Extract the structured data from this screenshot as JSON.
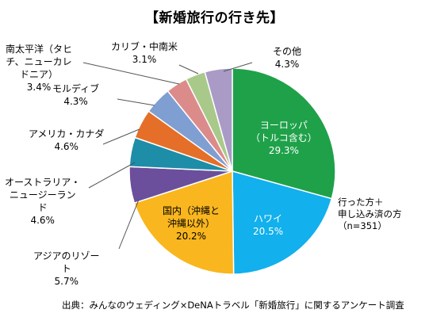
{
  "title": "【新婚旅行の行き先】",
  "chart_data": {
    "type": "pie",
    "start_angle_deg": 0,
    "direction": "clockwise",
    "slices": [
      {
        "key": "europe",
        "label_lines": [
          "ヨーロッパ",
          "（トルコ含む）"
        ],
        "value_text": "29.3%",
        "value": 29.3,
        "color": "#1fa14a",
        "label_color": "#ffffff"
      },
      {
        "key": "hawaii",
        "label_lines": [
          "ハワイ"
        ],
        "value_text": "20.5%",
        "value": 20.5,
        "color": "#12b0ec",
        "label_color": "#ffffff"
      },
      {
        "key": "domestic",
        "label_lines": [
          "国内（沖縄と",
          "沖縄以外）"
        ],
        "value_text": "20.2%",
        "value": 20.2,
        "color": "#f9b61e",
        "label_color": "#000000"
      },
      {
        "key": "asia",
        "label_lines": [
          "アジアのリゾー",
          "ト"
        ],
        "value_text": "5.7%",
        "value": 5.7,
        "color": "#6b4f9c",
        "label_color": "#000000"
      },
      {
        "key": "oceania",
        "label_lines": [
          "オーストラリア・",
          "ニュージーラン",
          "ド"
        ],
        "value_text": "4.6%",
        "value": 4.6,
        "color": "#1d8da8",
        "label_color": "#000000"
      },
      {
        "key": "americas",
        "label_lines": [
          "アメリカ・カナダ"
        ],
        "value_text": "4.6%",
        "value": 4.6,
        "color": "#e56f28",
        "label_color": "#000000"
      },
      {
        "key": "maldives",
        "label_lines": [
          "モルディブ"
        ],
        "value_text": "4.3%",
        "value": 4.3,
        "color": "#7f9fd2",
        "label_color": "#000000"
      },
      {
        "key": "pacific",
        "label_lines": [
          "南太平洋（タヒ",
          "チ、ニューカレ",
          "ドニア）"
        ],
        "value_text": "3.4%",
        "value": 3.4,
        "color": "#dc8b8b",
        "label_color": "#000000"
      },
      {
        "key": "caribbean",
        "label_lines": [
          "カリブ・中南米"
        ],
        "value_text": "3.1%",
        "value": 3.1,
        "color": "#a9c98a",
        "label_color": "#000000"
      },
      {
        "key": "other",
        "label_lines": [
          "その他"
        ],
        "value_text": "4.3%",
        "value": 4.3,
        "color": "#a99bc6",
        "label_color": "#000000"
      }
    ]
  },
  "note_lines": [
    "行った方＋",
    "申し込み済の方",
    "（n=351）"
  ],
  "source": "出典：みんなのウェディング×DeNAトラベル「新婚旅行」に関するアンケート調査"
}
